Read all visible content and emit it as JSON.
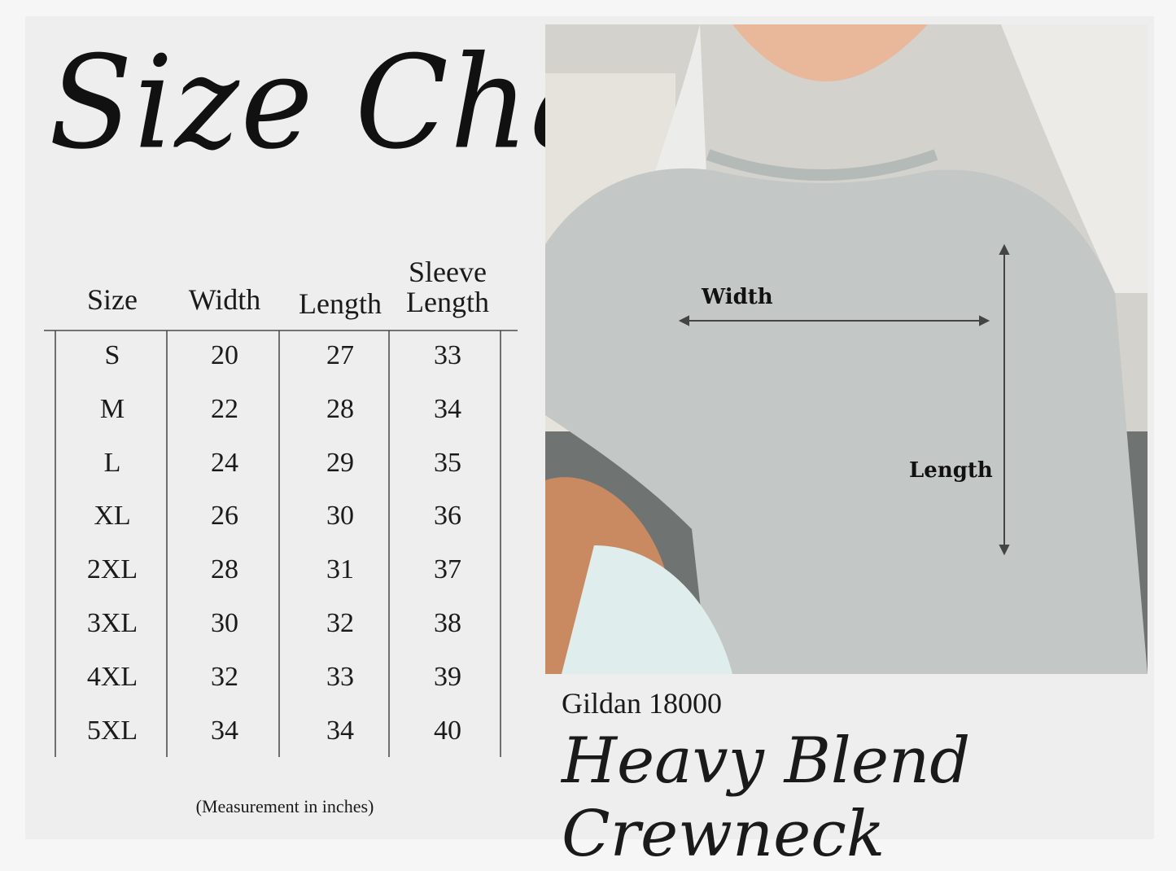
{
  "title": "Size Chart",
  "table": {
    "headers": [
      "Size",
      "Width",
      "Length",
      "Sleeve Length"
    ],
    "sleeve_header_lines": [
      "Sleeve",
      "Length"
    ],
    "rows": [
      [
        "S",
        "20",
        "27",
        "33"
      ],
      [
        "M",
        "22",
        "28",
        "34"
      ],
      [
        "L",
        "24",
        "29",
        "35"
      ],
      [
        "XL",
        "26",
        "30",
        "36"
      ],
      [
        "2XL",
        "28",
        "31",
        "37"
      ],
      [
        "3XL",
        "30",
        "32",
        "38"
      ],
      [
        "4XL",
        "32",
        "33",
        "39"
      ],
      [
        "5XL",
        "34",
        "34",
        "40"
      ]
    ]
  },
  "note": "(Measurement in inches)",
  "photo": {
    "width_label": "Width",
    "length_label": "Length"
  },
  "product": {
    "brand": "Gildan 18000",
    "name": "Heavy Blend Crewneck"
  },
  "colors": {
    "background": "#efeeee",
    "sweater": "#c3c8c6",
    "text": "#1a1a1a"
  }
}
